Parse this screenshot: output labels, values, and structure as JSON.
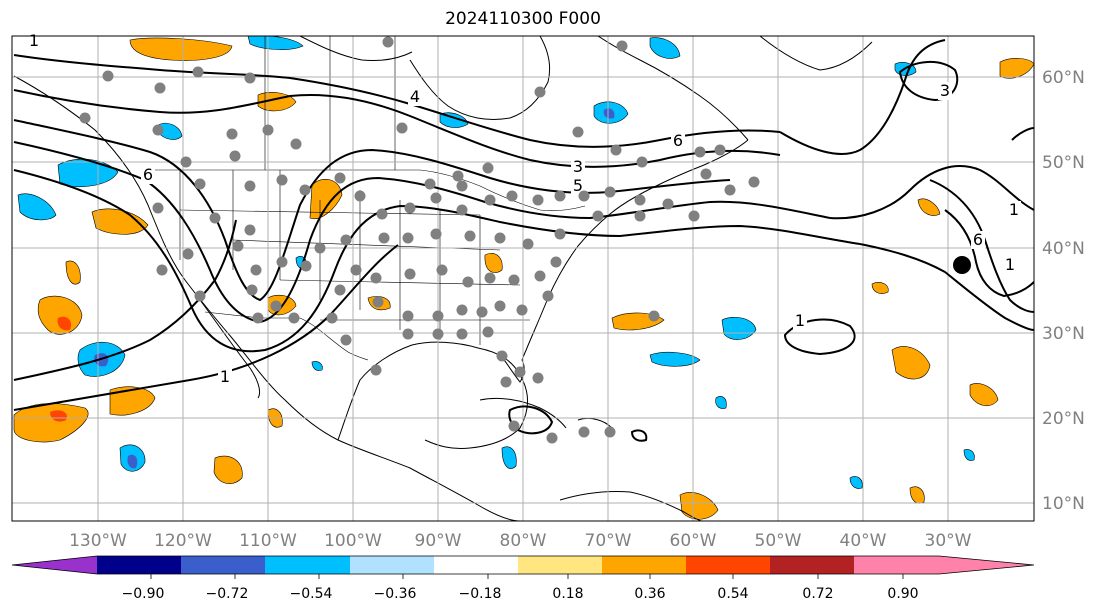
{
  "title": "2024110300 F000",
  "longitude_labels": [
    "130°W",
    "120°W",
    "110°W",
    "100°W",
    "90°W",
    "80°W",
    "70°W",
    "60°W",
    "50°W",
    "40°W",
    "30°W"
  ],
  "latitude_labels": [
    "60°N",
    "50°N",
    "40°N",
    "30°N",
    "20°N",
    "10°N"
  ],
  "contour_labels": [
    "1",
    "1",
    "1",
    "1",
    "3",
    "3",
    "4",
    "5",
    "6",
    "6",
    "6",
    "1"
  ],
  "colorbar": {
    "tick_labels": [
      "−0.90",
      "−0.72",
      "−0.54",
      "−0.36",
      "−0.18",
      "0.18",
      "0.36",
      "0.54",
      "0.72",
      "0.90"
    ],
    "colors": [
      "#9932cc",
      "#00008b",
      "#3a5fcd",
      "#00bfff",
      "#b0e2ff",
      "#ffffff",
      "#ffe680",
      "#ffa500",
      "#ff4500",
      "#b22222",
      "#ff82ab"
    ]
  },
  "colors": {
    "contour": "#000000",
    "station_dot": "#808080",
    "grid": "#b0b0b0",
    "marker": "#000000"
  }
}
